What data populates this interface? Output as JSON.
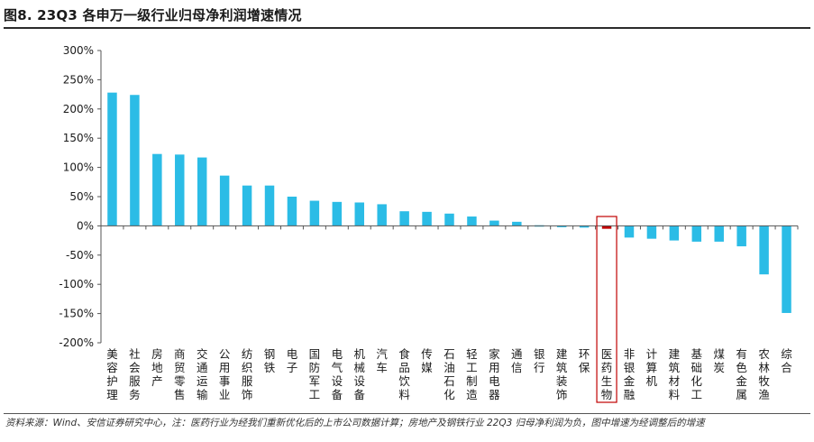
{
  "figure_title": "图8. 23Q3 各申万一级行业归母净利润增速情况",
  "source_note": "资料来源：Wind、安信证券研究中心，注：医药行业为经我们重新优化后的上市公司数据计算；房地产及钢铁行业 22Q3 归母净利润为负，图中增速为经调整后的增速",
  "colors": {
    "bar": "#2bbce6",
    "highlight_bar": "#c00000",
    "highlight_box": "#c00000",
    "axis": "#555555",
    "text": "#1a1a1a"
  },
  "chart_data": {
    "type": "bar",
    "categories": [
      "美容护理",
      "社会服务",
      "房地产",
      "商贸零售",
      "交通运输",
      "公用事业",
      "纺织服饰",
      "钢铁",
      "电子",
      "国防军工",
      "电气设备",
      "机械设备",
      "汽车",
      "食品饮料",
      "传媒",
      "石油石化",
      "轻工制造",
      "家用电器",
      "通信",
      "银行",
      "建筑装饰",
      "环保",
      "医药生物",
      "非银金融",
      "计算机",
      "建筑材料",
      "基础化工",
      "煤炭",
      "有色金属",
      "农林牧渔",
      "综合"
    ],
    "values": [
      228,
      224,
      123,
      122,
      117,
      86,
      69,
      69,
      50,
      43,
      41,
      40,
      37,
      25,
      24,
      21,
      16,
      9,
      7,
      1,
      -2,
      -3,
      -5,
      -20,
      -22,
      -25,
      -27,
      -27,
      -35,
      -83,
      -149
    ],
    "highlight": "医药生物",
    "ylim": [
      -200,
      300
    ],
    "yticks": [
      -200,
      -150,
      -100,
      -50,
      0,
      50,
      100,
      150,
      200,
      250,
      300
    ],
    "ytick_labels": [
      "-200%",
      "-150%",
      "-100%",
      "-50%",
      "0%",
      "50%",
      "100%",
      "150%",
      "200%",
      "250%",
      "300%"
    ],
    "title": "",
    "xlabel": "",
    "ylabel": "",
    "grid": false,
    "legend": "none"
  }
}
